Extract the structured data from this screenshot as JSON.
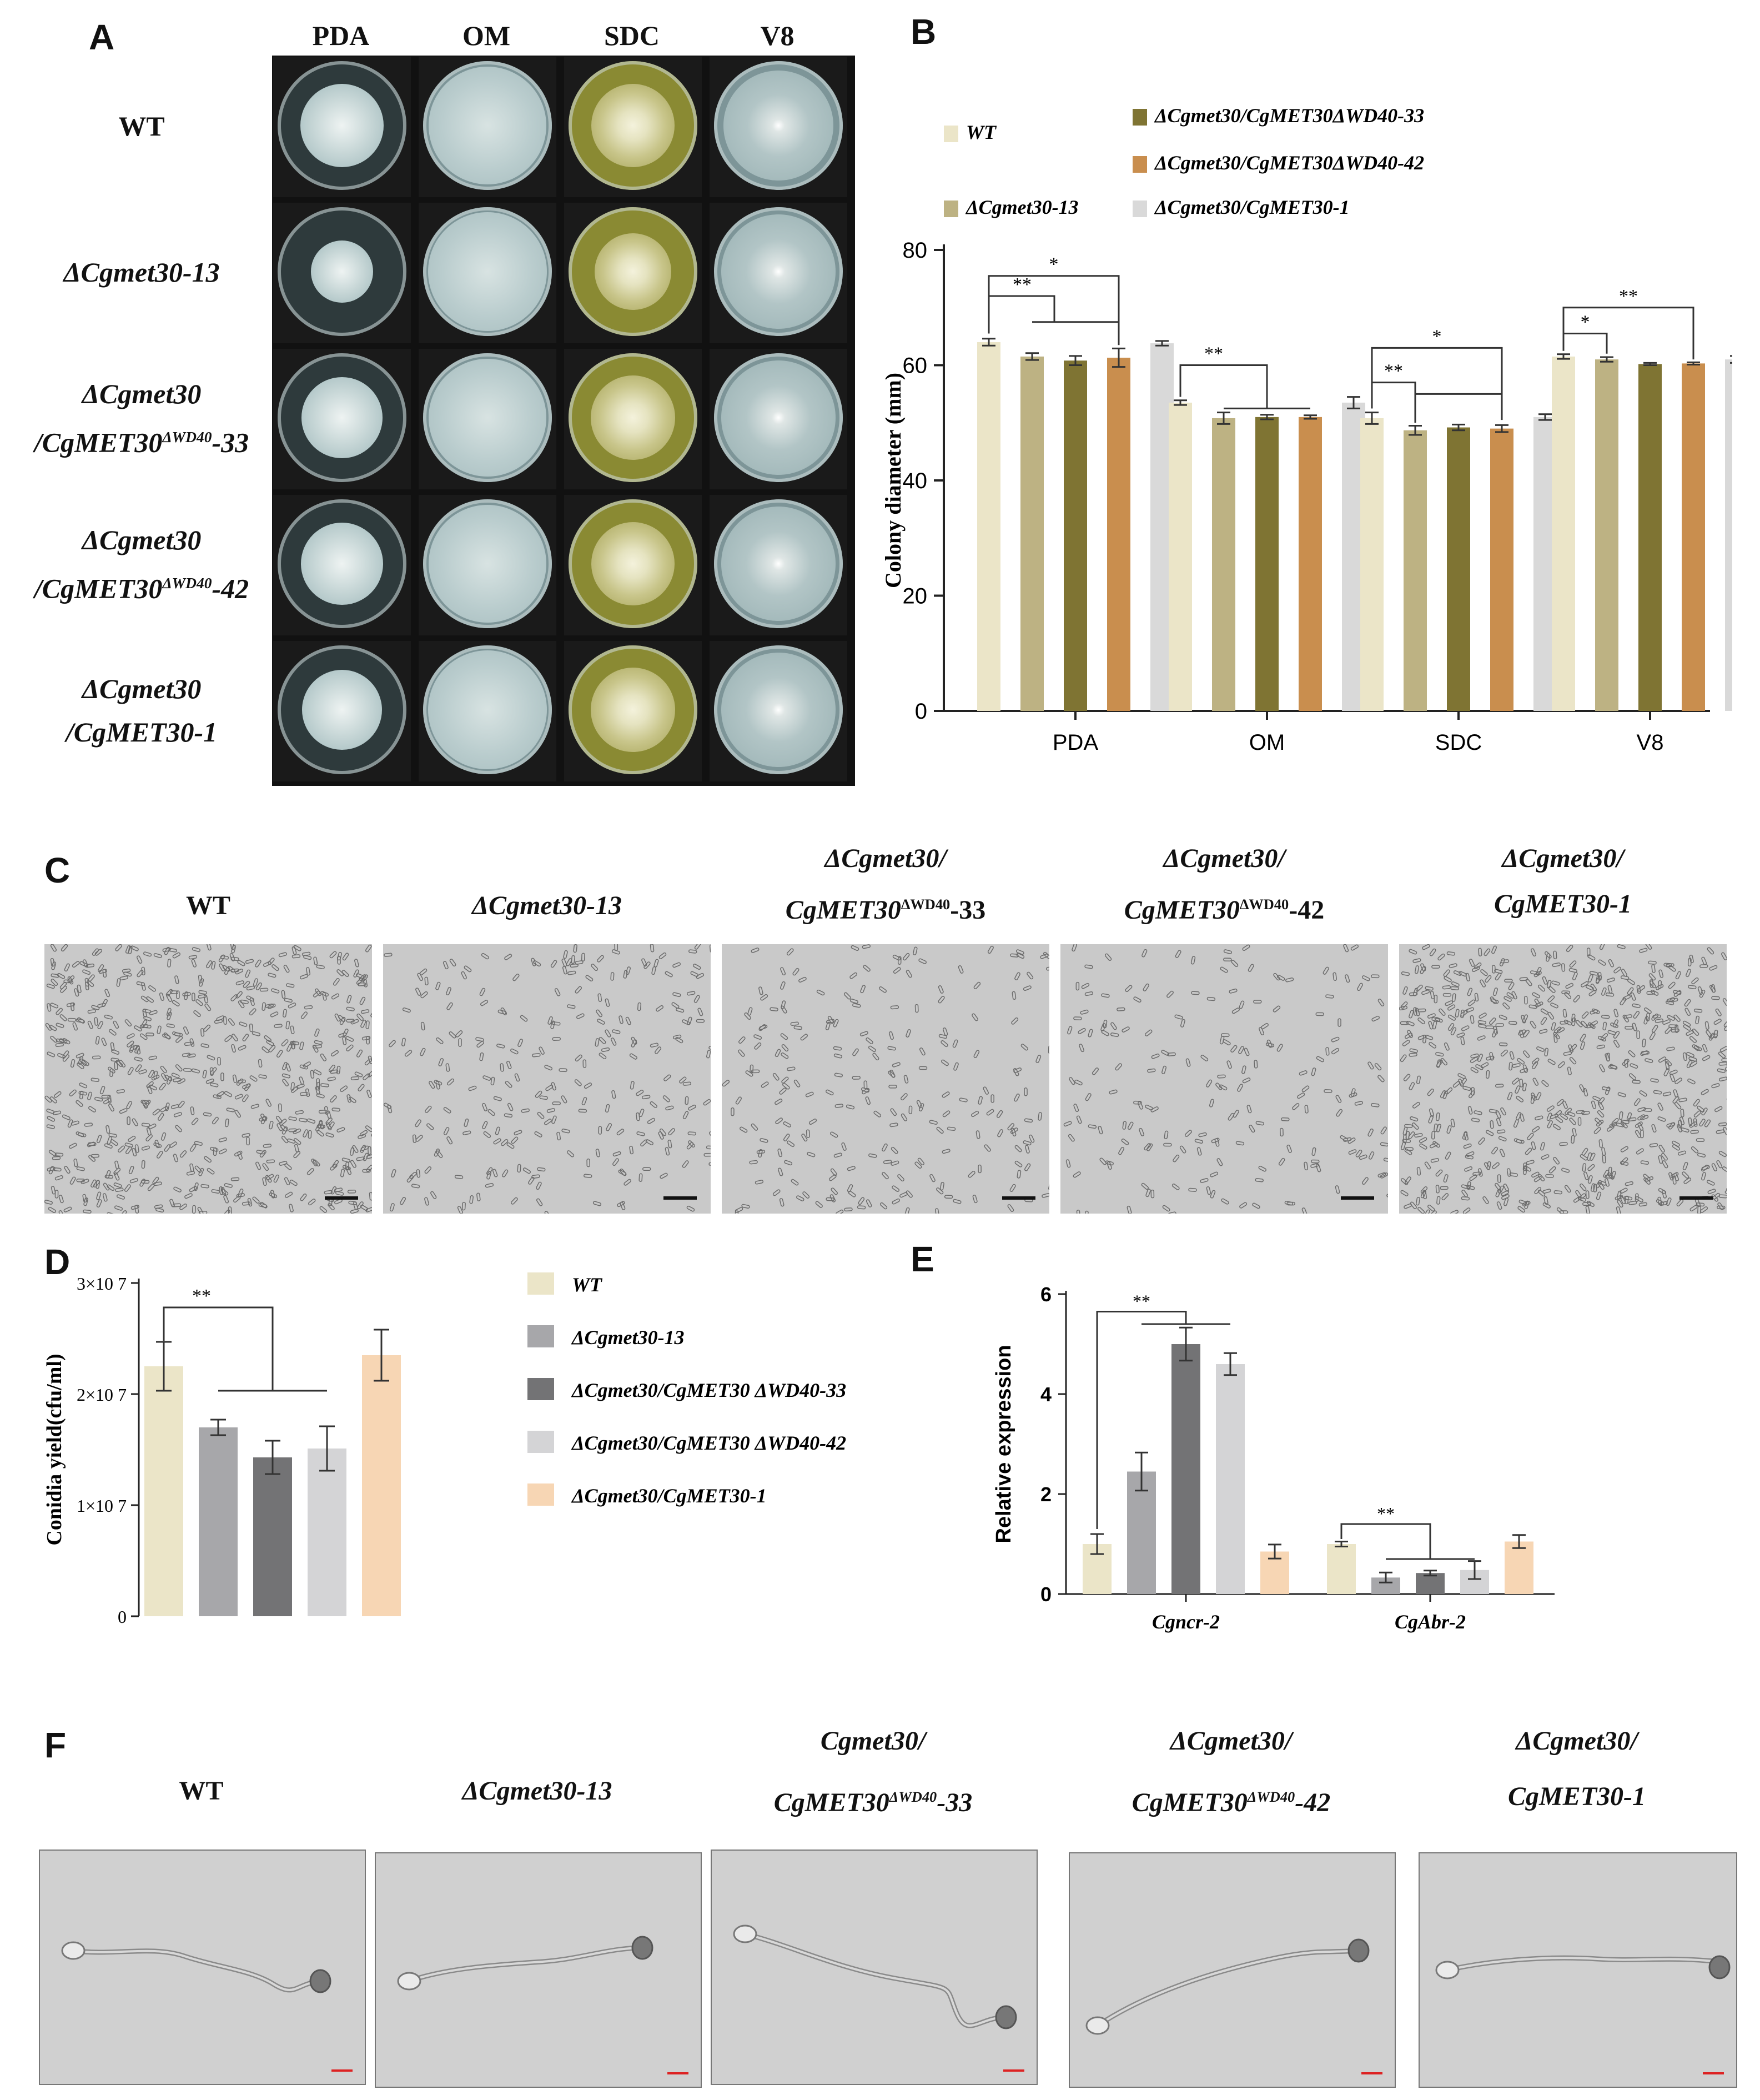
{
  "panels": {
    "A": {
      "letter": "A",
      "columns": [
        "PDA",
        "OM",
        "SDC",
        "V8"
      ],
      "rows": [
        {
          "lines": [
            "WT"
          ]
        },
        {
          "lines": [
            "ΔCgmet30-13"
          ]
        },
        {
          "lines": [
            "ΔCgmet30",
            "/CgMET30",
            "ΔWD40",
            "-33"
          ]
        },
        {
          "lines": [
            "ΔCgmet30",
            "/CgMET30",
            "ΔWD40",
            "-42"
          ]
        },
        {
          "lines": [
            "ΔCgmet30",
            "/CgMET30-1"
          ]
        }
      ],
      "colors": {
        "PDA": "#9fb3b6",
        "OM": "#a9bcbe",
        "SDC": "#8d8c3e",
        "V8": "#94aaae"
      }
    },
    "B": {
      "letter": "B"
    },
    "C": {
      "letter": "C",
      "labels": [
        {
          "l1": "WT",
          "l2": ""
        },
        {
          "l1": "ΔCgmet30-13",
          "l2": ""
        },
        {
          "l1": "ΔCgmet30/",
          "l2a": "CgMET30",
          "sup": "ΔWD40",
          "l2b": "-33"
        },
        {
          "l1": "ΔCgmet30/",
          "l2a": "CgMET30",
          "sup": "ΔWD40",
          "l2b": "-42"
        },
        {
          "l1": "ΔCgmet30/",
          "l2a": "CgMET30-1",
          "sup": "",
          "l2b": ""
        }
      ]
    },
    "D": {
      "letter": "D"
    },
    "E": {
      "letter": "E"
    },
    "F": {
      "letter": "F",
      "labels": [
        {
          "l1": "WT",
          "l2a": "",
          "sup": "",
          "l2b": ""
        },
        {
          "l1": "ΔCgmet30-13",
          "l2a": "",
          "sup": "",
          "l2b": ""
        },
        {
          "l1": "Cgmet30/",
          "l2a": "CgMET30",
          "sup": "ΔWD40",
          "l2b": "-33"
        },
        {
          "l1": "ΔCgmet30/",
          "l2a": "CgMET30",
          "sup": "ΔWD40",
          "l2b": "-42"
        },
        {
          "l1": "ΔCgmet30/",
          "l2a": "CgMET30-1",
          "sup": "",
          "l2b": ""
        }
      ]
    }
  },
  "chart_data": [
    {
      "id": "B",
      "type": "bar",
      "categories": [
        "PDA",
        "OM",
        "SDC",
        "V8"
      ],
      "ylabel": "Colony diameter (mm)",
      "ylim": [
        0,
        80
      ],
      "yticks": [
        0,
        20,
        40,
        60,
        80
      ],
      "legend_placement": "top",
      "series": [
        {
          "name": "WT",
          "color": "#ebe5c8",
          "values": [
            64,
            53.5,
            50.8,
            61.5
          ],
          "err": [
            0.6,
            0.4,
            1.0,
            0.4
          ]
        },
        {
          "name": "ΔCgmet30-13",
          "color": "#bdb283",
          "values": [
            61.5,
            50.8,
            48.7,
            61.0
          ],
          "err": [
            0.6,
            1.0,
            0.8,
            0.4
          ]
        },
        {
          "name": "ΔCgmet30/CgMET30ΔWD40-33",
          "color": "#7f7433",
          "values": [
            60.8,
            51.0,
            49.2,
            60.2
          ],
          "err": [
            0.8,
            0.4,
            0.5,
            0.2
          ]
        },
        {
          "name": "ΔCgmet30/CgMET30ΔWD40-42",
          "color": "#c98e4e",
          "values": [
            61.3,
            51.0,
            49.0,
            60.3
          ],
          "err": [
            1.6,
            0.3,
            0.6,
            0.2
          ]
        },
        {
          "name": "ΔCgmet30/CgMET30-1",
          "color": "#d9d9d9",
          "values": [
            63.8,
            53.5,
            51.0,
            61.0
          ],
          "err": [
            0.4,
            1.0,
            0.5,
            0.6
          ]
        }
      ],
      "annotations": [
        "**",
        "*",
        "**",
        "**",
        "*",
        "*",
        "**"
      ]
    },
    {
      "id": "D",
      "type": "bar",
      "categories": [
        "WT",
        "ΔCgmet30-13",
        "ΔCgmet30/CgMET30 ΔWD40-33",
        "ΔCgmet30/CgMET30 ΔWD40-42",
        "ΔCgmet30/CgMET30-1"
      ],
      "ylabel": "Conidia yield(cfu/ml)",
      "ylim": [
        0,
        30000000
      ],
      "ytick_labels": [
        "0",
        "1×10 7",
        "2×10 7",
        "3×10 7"
      ],
      "legend_placement": "right",
      "series": [
        {
          "name": "WT",
          "color": "#ebe5c8",
          "value": 22500000,
          "err": 2200000
        },
        {
          "name": "ΔCgmet30-13",
          "color": "#a7a7aa",
          "value": 17000000,
          "err": 700000
        },
        {
          "name": "ΔCgmet30/CgMET30 ΔWD40-33",
          "color": "#737375",
          "value": 14300000,
          "err": 1500000
        },
        {
          "name": "ΔCgmet30/CgMET30 ΔWD40-42",
          "color": "#d4d4d6",
          "value": 15100000,
          "err": 2000000
        },
        {
          "name": "ΔCgmet30/CgMET30-1",
          "color": "#f7d6b4",
          "value": 23500000,
          "err": 2300000
        }
      ],
      "annotations": [
        "**"
      ]
    },
    {
      "id": "E",
      "type": "bar",
      "categories": [
        "Cgncr-2",
        "CgAbr-2"
      ],
      "ylabel": "Relative expression",
      "ylim": [
        0,
        6
      ],
      "yticks": [
        0,
        2,
        4,
        6
      ],
      "series": [
        {
          "color": "#ebe5c8",
          "values": [
            1.0,
            1.0
          ],
          "err": [
            0.2,
            0.05
          ]
        },
        {
          "color": "#a7a7aa",
          "values": [
            2.45,
            0.33
          ],
          "err": [
            0.38,
            0.1
          ]
        },
        {
          "color": "#737375",
          "values": [
            5.0,
            0.42
          ],
          "err": [
            0.33,
            0.05
          ]
        },
        {
          "color": "#d4d4d6",
          "values": [
            4.6,
            0.48
          ],
          "err": [
            0.22,
            0.18
          ]
        },
        {
          "color": "#f7d6b4",
          "values": [
            0.85,
            1.05
          ],
          "err": [
            0.14,
            0.13
          ]
        }
      ],
      "annotations": [
        "**",
        "**"
      ]
    }
  ]
}
